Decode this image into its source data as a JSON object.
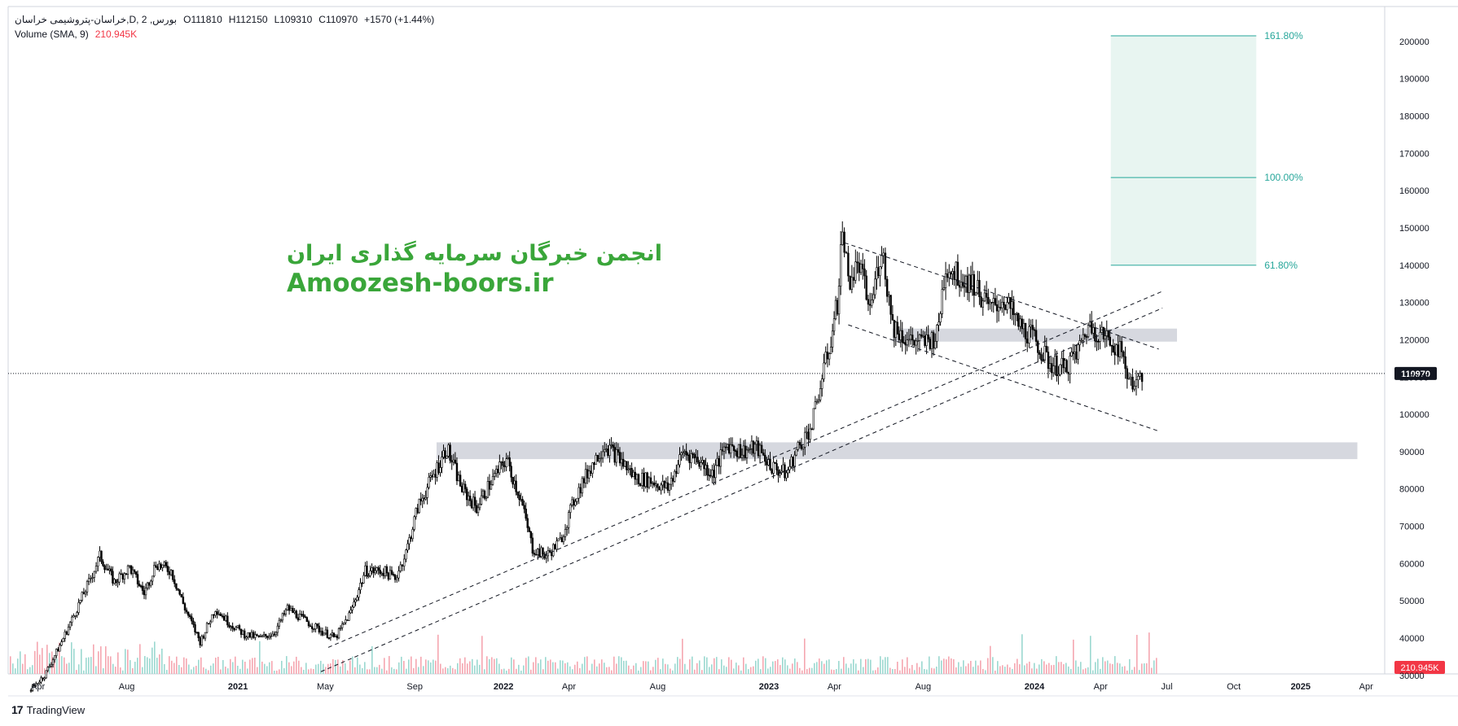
{
  "legend": {
    "symbol": "خراسان-پتروشیمی خراسان,D, بورس, 2",
    "open": "O111810",
    "high": "H112150",
    "low": "L109310",
    "close": "C110970",
    "change": "+1570 (+1.44%)",
    "volume_label": "Volume (SMA, 9)",
    "volume_value": "210.945K"
  },
  "watermark": {
    "persian": "انجمن خبرگان سرمایه گذاری ایران",
    "site": "Amoozesh-boors.ir"
  },
  "footer": {
    "brand": "TradingView",
    "logo": "17"
  },
  "colors": {
    "watermark": "#3aa63a",
    "fib": "#26a69a",
    "fib_fill": "#e8f5f1",
    "zone": "#d1d4dc",
    "volume_up": "#9bd8d0",
    "volume_down": "#f5a6b0",
    "accent_red": "#f23645"
  },
  "chart_data": {
    "type": "candlestick",
    "x_axis_labels": [
      "Apr",
      "Aug",
      "2021",
      "May",
      "Sep",
      "2022",
      "Apr",
      "Aug",
      "2023",
      "Apr",
      "Aug",
      "2024",
      "Apr",
      "Jul",
      "Oct",
      "2025",
      "Apr"
    ],
    "y_axis_labels": [
      "200000",
      "190000",
      "180000",
      "170000",
      "160000",
      "150000",
      "140000",
      "130000",
      "120000",
      "110000",
      "100000",
      "90000",
      "80000",
      "70000",
      "60000",
      "50000",
      "40000",
      "30000"
    ],
    "ylim": [
      28000,
      205000
    ],
    "current_price": 110970,
    "current_price_label": "110970",
    "volume_label": "210.945K",
    "price_path": [
      [
        "2020-03-20",
        26000
      ],
      [
        "2020-04-10",
        30000
      ],
      [
        "2020-05-01",
        38000
      ],
      [
        "2020-05-20",
        46000
      ],
      [
        "2020-06-10",
        55000
      ],
      [
        "2020-06-25",
        62000
      ],
      [
        "2020-07-15",
        55000
      ],
      [
        "2020-08-05",
        59000
      ],
      [
        "2020-08-25",
        52000
      ],
      [
        "2020-09-10",
        60000
      ],
      [
        "2020-10-01",
        58000
      ],
      [
        "2020-10-20",
        48000
      ],
      [
        "2020-11-10",
        39000
      ],
      [
        "2020-12-01",
        48000
      ],
      [
        "2020-12-20",
        44000
      ],
      [
        "2021-01-10",
        41000
      ],
      [
        "2021-02-01",
        40000
      ],
      [
        "2021-02-20",
        41500
      ],
      [
        "2021-03-10",
        48000
      ],
      [
        "2021-04-01",
        45000
      ],
      [
        "2021-04-25",
        42000
      ],
      [
        "2021-05-15",
        40000
      ],
      [
        "2021-06-05",
        47000
      ],
      [
        "2021-06-25",
        58000
      ],
      [
        "2021-07-20",
        58000
      ],
      [
        "2021-08-05",
        56000
      ],
      [
        "2021-08-20",
        63000
      ],
      [
        "2021-09-05",
        75000
      ],
      [
        "2021-09-25",
        83000
      ],
      [
        "2021-10-15",
        91000
      ],
      [
        "2021-11-05",
        80000
      ],
      [
        "2021-11-25",
        75000
      ],
      [
        "2021-12-15",
        82000
      ],
      [
        "2022-01-05",
        88000
      ],
      [
        "2022-01-25",
        77000
      ],
      [
        "2022-02-10",
        64000
      ],
      [
        "2022-03-01",
        62000
      ],
      [
        "2022-03-20",
        66000
      ],
      [
        "2022-04-10",
        78000
      ],
      [
        "2022-05-01",
        86000
      ],
      [
        "2022-05-20",
        92000
      ],
      [
        "2022-06-10",
        88000
      ],
      [
        "2022-07-01",
        83000
      ],
      [
        "2022-07-25",
        82000
      ],
      [
        "2022-08-15",
        80000
      ],
      [
        "2022-09-05",
        90000
      ],
      [
        "2022-09-25",
        88000
      ],
      [
        "2022-10-15",
        84000
      ],
      [
        "2022-11-05",
        92000
      ],
      [
        "2022-11-25",
        90000
      ],
      [
        "2022-12-15",
        91000
      ],
      [
        "2023-01-05",
        86000
      ],
      [
        "2023-01-25",
        84000
      ],
      [
        "2023-02-10",
        91000
      ],
      [
        "2023-03-01",
        97000
      ],
      [
        "2023-03-15",
        110000
      ],
      [
        "2023-03-25",
        118000
      ],
      [
        "2023-04-05",
        130000
      ],
      [
        "2023-04-12",
        150000
      ],
      [
        "2023-04-20",
        136000
      ],
      [
        "2023-05-05",
        140000
      ],
      [
        "2023-05-20",
        128000
      ],
      [
        "2023-06-05",
        145000
      ],
      [
        "2023-06-20",
        124000
      ],
      [
        "2023-07-10",
        120000
      ],
      [
        "2023-08-01",
        119000
      ],
      [
        "2023-08-20",
        121000
      ],
      [
        "2023-09-01",
        140000
      ],
      [
        "2023-09-20",
        137000
      ],
      [
        "2023-10-10",
        135000
      ],
      [
        "2023-11-01",
        128000
      ],
      [
        "2023-11-20",
        131000
      ],
      [
        "2023-12-10",
        124000
      ],
      [
        "2024-01-01",
        120000
      ],
      [
        "2024-01-20",
        114000
      ],
      [
        "2024-02-10",
        112000
      ],
      [
        "2024-03-01",
        117000
      ],
      [
        "2024-03-15",
        124000
      ],
      [
        "2024-04-05",
        121000
      ],
      [
        "2024-04-25",
        118000
      ],
      [
        "2024-05-10",
        110000
      ],
      [
        "2024-05-20",
        108000
      ],
      [
        "2024-05-28",
        110970
      ]
    ],
    "horizontal_zones": [
      {
        "from": "2021-10-01",
        "to": "2025-03-20",
        "low": 88000,
        "high": 92500
      },
      {
        "from": "2023-06-20",
        "to": "2024-07-15",
        "low": 119500,
        "high": 123000
      }
    ],
    "trend_lines": [
      {
        "p1": [
          "2021-05-05",
          37500
        ],
        "p2": [
          "2024-06-25",
          133000
        ]
      },
      {
        "p1": [
          "2021-04-25",
          31000
        ],
        "p2": [
          "2024-06-25",
          128500
        ]
      },
      {
        "p1": [
          "2023-04-15",
          146000
        ],
        "p2": [
          "2024-06-20",
          117500
        ]
      },
      {
        "p1": [
          "2023-04-20",
          124000
        ],
        "p2": [
          "2024-06-20",
          95500
        ]
      }
    ],
    "fibonacci": {
      "from": "2024-04-15",
      "to": "2024-11-01",
      "levels": [
        {
          "label": "161.80%",
          "price": 201500
        },
        {
          "label": "100.00%",
          "price": 163500
        },
        {
          "label": "61.80%",
          "price": 140000
        }
      ]
    }
  }
}
